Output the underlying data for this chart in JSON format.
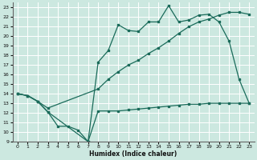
{
  "xlabel": "Humidex (Indice chaleur)",
  "bg_color": "#cce8e0",
  "grid_color": "#ffffff",
  "line_color": "#1a6b5a",
  "xlim": [
    -0.5,
    23.5
  ],
  "ylim": [
    9,
    23.5
  ],
  "xticks": [
    0,
    1,
    2,
    3,
    4,
    5,
    6,
    7,
    8,
    9,
    10,
    11,
    12,
    13,
    14,
    15,
    16,
    17,
    18,
    19,
    20,
    21,
    22,
    23
  ],
  "yticks": [
    9,
    10,
    11,
    12,
    13,
    14,
    15,
    16,
    17,
    18,
    19,
    20,
    21,
    22,
    23
  ],
  "line_bottom_x": [
    0,
    1,
    2,
    3,
    4,
    5,
    6,
    7,
    8,
    9,
    10,
    11,
    12,
    13,
    14,
    15,
    16,
    17,
    18,
    19,
    20,
    21,
    22,
    23
  ],
  "line_bottom_y": [
    14,
    13.8,
    13.2,
    12.1,
    10.6,
    10.6,
    10.2,
    9.0,
    12.2,
    12.2,
    12.2,
    12.3,
    12.4,
    12.5,
    12.6,
    12.7,
    12.8,
    12.9,
    12.9,
    13.0,
    13.0,
    13.0,
    13.0,
    13.0
  ],
  "line_top_x": [
    0,
    1,
    2,
    3,
    7,
    8,
    9,
    10,
    11,
    12,
    13,
    14,
    15,
    16,
    17,
    18,
    19,
    20,
    21,
    22,
    23
  ],
  "line_top_y": [
    14,
    13.8,
    13.2,
    12.1,
    9.0,
    17.3,
    18.5,
    21.2,
    20.6,
    20.5,
    21.5,
    21.5,
    23.2,
    21.5,
    21.7,
    22.2,
    22.3,
    21.5,
    19.5,
    15.5,
    13.0
  ],
  "line_diag_x": [
    0,
    1,
    2,
    3,
    8,
    9,
    10,
    11,
    12,
    13,
    14,
    15,
    16,
    17,
    18,
    19,
    20,
    21,
    22,
    23
  ],
  "line_diag_y": [
    14,
    13.8,
    13.2,
    12.5,
    14.5,
    15.5,
    16.3,
    17.0,
    17.5,
    18.2,
    18.8,
    19.5,
    20.3,
    21.0,
    21.5,
    21.8,
    22.2,
    22.5,
    22.5,
    22.3
  ]
}
